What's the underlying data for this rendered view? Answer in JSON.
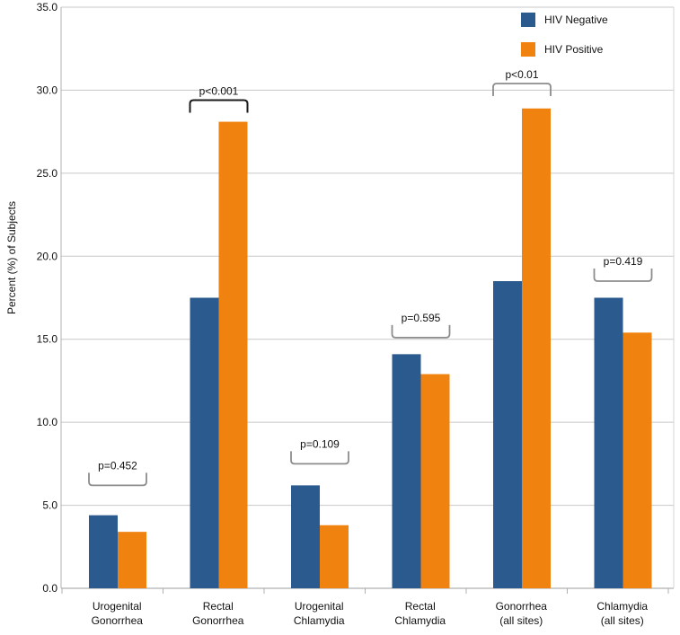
{
  "chart_data": {
    "type": "bar",
    "title": "",
    "xlabel": "",
    "ylabel": "Percent (%) of Subjects",
    "ylim": [
      0,
      35
    ],
    "yticks": [
      "0.0",
      "5.0",
      "10.0",
      "15.0",
      "20.0",
      "25.0",
      "30.0",
      "35.0"
    ],
    "grid": true,
    "legend_position": "top-right",
    "categories": [
      [
        "Urogenital",
        "Gonorrhea"
      ],
      [
        "Rectal",
        "Gonorrhea"
      ],
      [
        "Urogenital",
        "Chlamydia"
      ],
      [
        "Rectal",
        "Chlamydia"
      ],
      [
        "Gonorrhea",
        "(all sites)"
      ],
      [
        "Chlamydia",
        "(all sites)"
      ]
    ],
    "series": [
      {
        "name": "HIV Negative",
        "color": "#2b5a8e",
        "values": [
          4.4,
          17.5,
          6.2,
          14.1,
          18.5,
          17.5
        ]
      },
      {
        "name": "HIV Positive",
        "color": "#f0820f",
        "values": [
          3.4,
          28.1,
          3.8,
          12.9,
          28.9,
          15.4
        ]
      }
    ],
    "annotations": [
      {
        "label": "p=0.452",
        "category": 0,
        "bracket_value": 6.2,
        "style": "gray-up"
      },
      {
        "label": "p<0.001",
        "category": 1,
        "bracket_value": 29.4,
        "style": "black-down"
      },
      {
        "label": "p=0.109",
        "category": 2,
        "bracket_value": 7.5,
        "style": "gray-up"
      },
      {
        "label": "p=0.595",
        "category": 3,
        "bracket_value": 15.1,
        "style": "gray-up"
      },
      {
        "label": "p<0.01",
        "category": 4,
        "bracket_value": 30.4,
        "style": "gray-down"
      },
      {
        "label": "p=0.419",
        "category": 5,
        "bracket_value": 18.5,
        "style": "gray-up"
      }
    ]
  }
}
